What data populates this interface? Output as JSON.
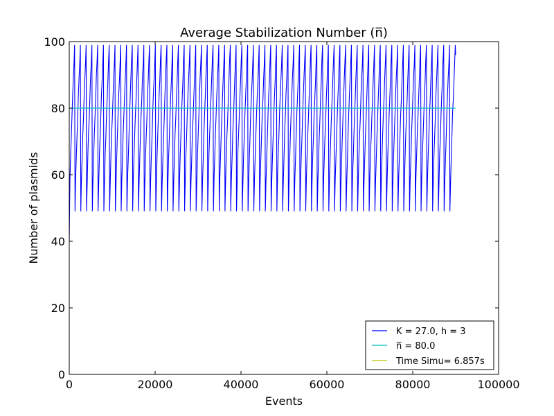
{
  "chart_data": {
    "type": "line",
    "title": "Average Stabilization Number (n̅)",
    "xlabel": "Events",
    "ylabel": "Number of plasmids",
    "xlim": [
      0,
      100000
    ],
    "ylim": [
      0,
      100
    ],
    "xticks": [
      0,
      20000,
      40000,
      60000,
      80000,
      100000
    ],
    "yticks": [
      0,
      20,
      40,
      60,
      80,
      100
    ],
    "xtick_labels": [
      "0",
      "20000",
      "40000",
      "60000",
      "80000",
      "100000"
    ],
    "ytick_labels": [
      "0",
      "20",
      "40",
      "60",
      "80",
      "100"
    ],
    "grid": false,
    "legend_position": "bottom-right",
    "series": [
      {
        "name": "K = 27.0, h = 3",
        "color": "#0000ff",
        "pattern": "sawtooth",
        "x_start": 0,
        "x_end": 90000,
        "y_start": 40,
        "y_low": 49,
        "y_high": 99,
        "y_end": 96,
        "cycle_count": 67
      },
      {
        "name": "n̅ = 80.0",
        "color": "#00bfbf",
        "x": [
          0,
          90000
        ],
        "y": [
          80,
          80
        ]
      },
      {
        "name": "Time Simu= 6.857s",
        "color": "#bfbf00",
        "x": [],
        "y": []
      }
    ]
  }
}
